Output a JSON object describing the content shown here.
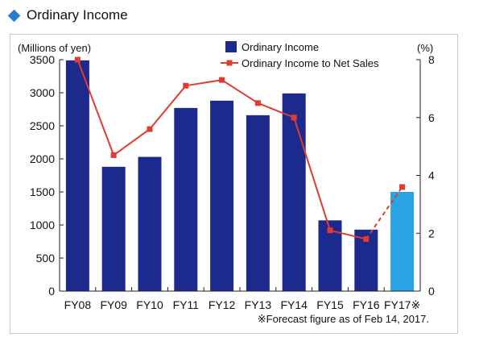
{
  "title": "Ordinary Income",
  "footnote": "※Forecast figure as of Feb 14, 2017.",
  "colors": {
    "title_marker": "#2a7bd4",
    "bar": "#1b2a8c",
    "bar_forecast": "#29a3e3",
    "line": "#e13b2f",
    "axis": "#222222"
  },
  "chart_data": {
    "type": "bar",
    "categories": [
      "FY08",
      "FY09",
      "FY10",
      "FY11",
      "FY12",
      "FY13",
      "FY14",
      "FY15",
      "FY16",
      "FY17※"
    ],
    "series": [
      {
        "name": "Ordinary Income",
        "type": "bar",
        "axis": "left",
        "values": [
          3490,
          1880,
          2030,
          2770,
          2880,
          2660,
          2990,
          1070,
          930,
          1500
        ],
        "forecast_index": 9
      },
      {
        "name": "Ordinary Income to Net Sales",
        "type": "line",
        "axis": "right",
        "values": [
          8.0,
          4.7,
          5.6,
          7.1,
          7.3,
          6.5,
          6.0,
          2.1,
          1.8,
          3.6
        ],
        "forecast_index": 9
      }
    ],
    "ylabel_left": "(Millions of yen)",
    "ylabel_right": "(%)",
    "ylim_left": [
      0,
      3500
    ],
    "yticks_left": [
      0,
      500,
      1000,
      1500,
      2000,
      2500,
      3000,
      3500
    ],
    "ylim_right": [
      0,
      8
    ],
    "yticks_right": [
      0,
      2,
      4,
      6,
      8
    ],
    "legend_position": "top-center",
    "grid": false
  }
}
